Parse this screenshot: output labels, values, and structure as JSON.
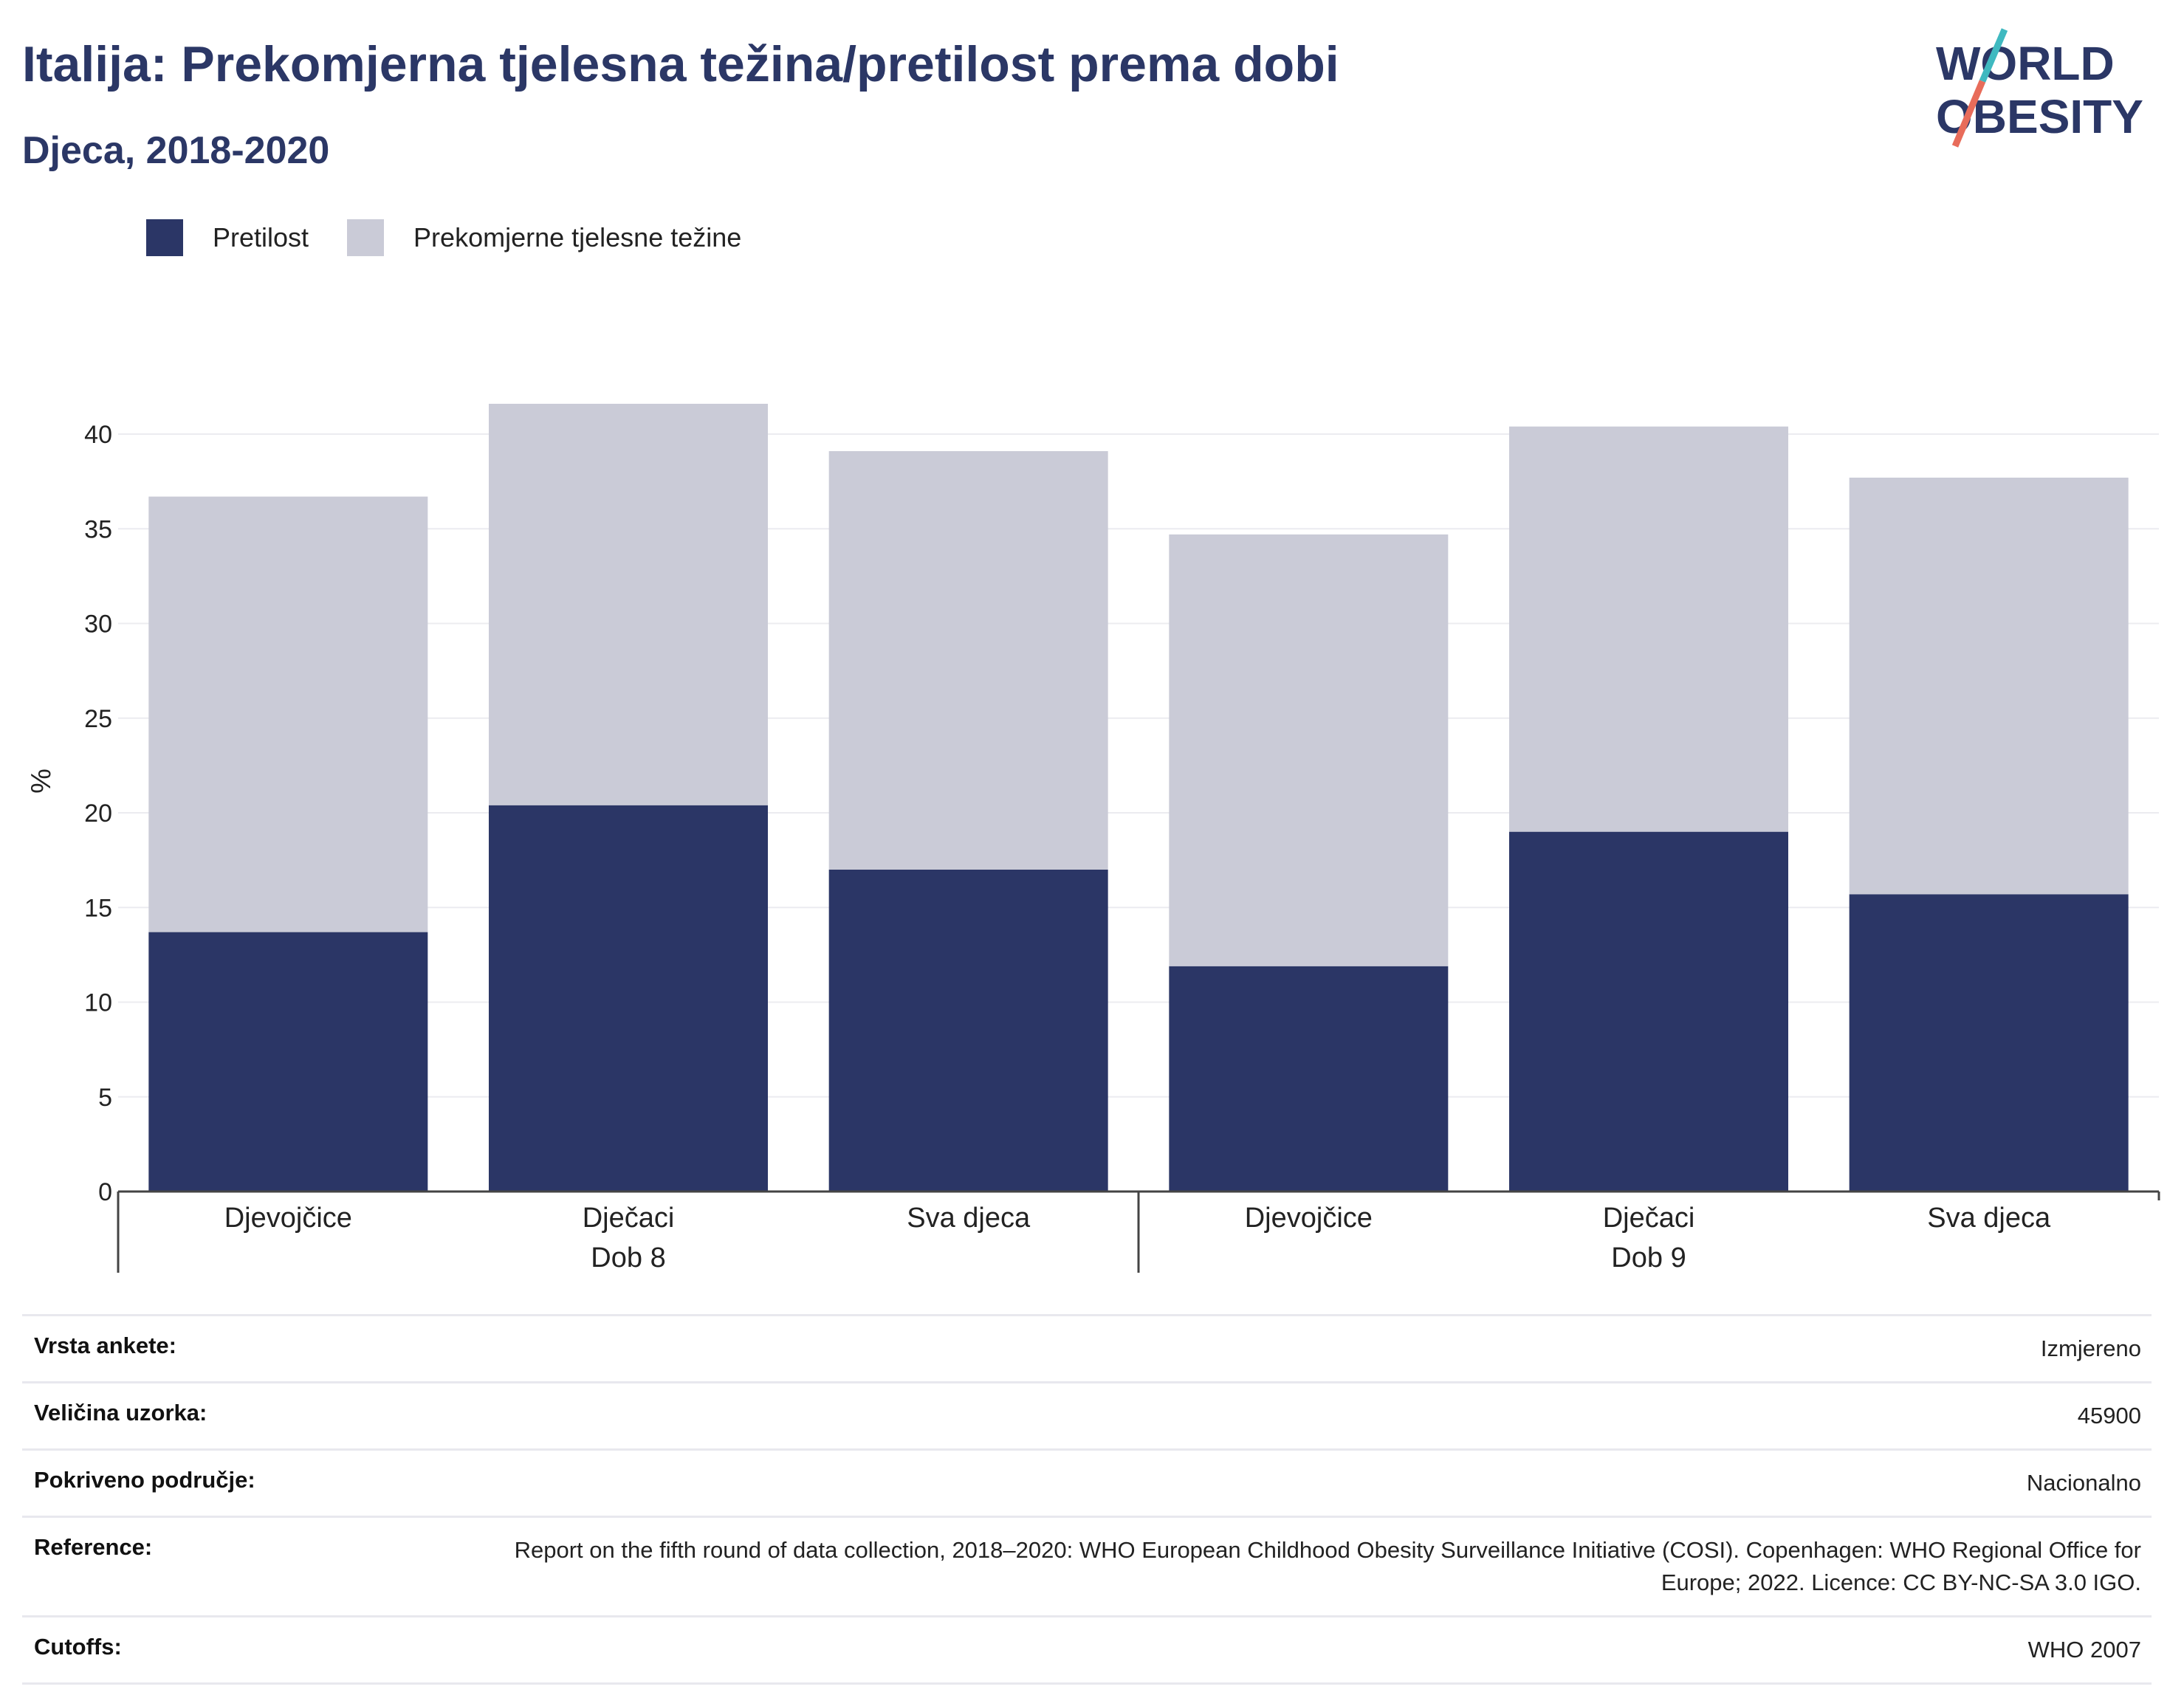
{
  "title": "Italija: Prekomjerna tjelesna težina/pretilost prema dobi",
  "subtitle": "Djeca, 2018-2020",
  "logo": {
    "line1": "WORLD",
    "line2": "OBESITY"
  },
  "colors": {
    "obese": "#2b3666",
    "overweight": "#cacbd7",
    "title": "#2b3766",
    "logo_teal": "#3fb9c0",
    "logo_coral": "#e86c5a"
  },
  "legend": [
    {
      "label": "Pretilost",
      "color": "#2b3666"
    },
    {
      "label": "Prekomjerne tjelesne težine",
      "color": "#cacbd7"
    }
  ],
  "chart_data": {
    "type": "bar",
    "stacked": true,
    "ylabel": "%",
    "ylim": [
      0,
      42
    ],
    "yticks": [
      "0",
      "5",
      "10",
      "15",
      "20",
      "25",
      "30",
      "35",
      "40"
    ],
    "grid": true,
    "legend_position": "top-left",
    "groups": [
      {
        "label": "Dob 8",
        "categories": [
          "Djevojčice",
          "Dječaci",
          "Sva djeca"
        ]
      },
      {
        "label": "Dob 9",
        "categories": [
          "Djevojčice",
          "Dječaci",
          "Sva djeca"
        ]
      }
    ],
    "series": [
      {
        "name": "Pretilost",
        "values": [
          13.7,
          20.4,
          17.0,
          11.9,
          19.0,
          15.7
        ]
      },
      {
        "name": "Prekomjerne tjelesne težine",
        "values": [
          23.0,
          21.2,
          22.1,
          22.8,
          21.4,
          22.0
        ]
      }
    ]
  },
  "info": [
    {
      "key": "Vrsta ankete:",
      "value": "Izmjereno"
    },
    {
      "key": "Veličina uzorka:",
      "value": "45900"
    },
    {
      "key": "Pokriveno područje:",
      "value": "Nacionalno"
    },
    {
      "key": "Reference:",
      "value": "Report on the fifth round of data collection, 2018–2020: WHO European Childhood Obesity Surveillance Initiative (COSI). Copenhagen: WHO Regional Office for Europe; 2022. Licence: CC BY-NC-SA 3.0 IGO."
    },
    {
      "key": "Cutoffs:",
      "value": "WHO 2007"
    }
  ]
}
